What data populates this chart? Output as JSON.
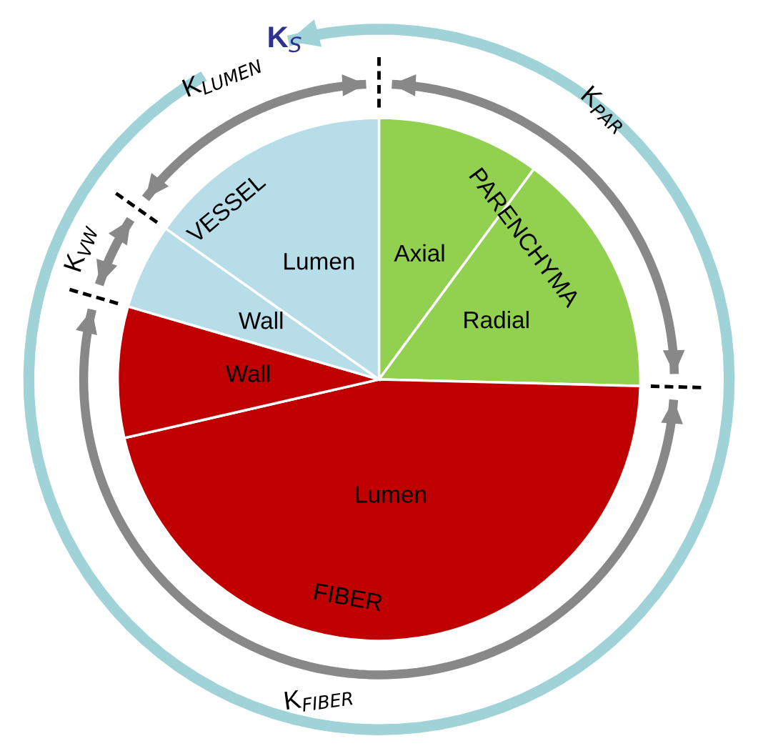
{
  "chart_data": {
    "type": "pie",
    "categories": [
      "Axial",
      "Radial",
      "Lumen",
      "Wall",
      "Wall",
      "Lumen"
    ],
    "values": [
      10.1,
      15.3,
      46.0,
      8.1,
      5.3,
      15.2
    ],
    "colors": [
      "#92d050",
      "#92d050",
      "#c00000",
      "#c00000",
      "#b7dde8",
      "#b7dde8"
    ],
    "annotations": [
      "K$_{S}$",
      "K$_{LUMEN}$",
      "K$_{PAR}$",
      "K$_{VW}$",
      "K$_{FIBER}$",
      "VESSEL",
      "PARENCHYMA",
      "FIBER"
    ]
  }
}
